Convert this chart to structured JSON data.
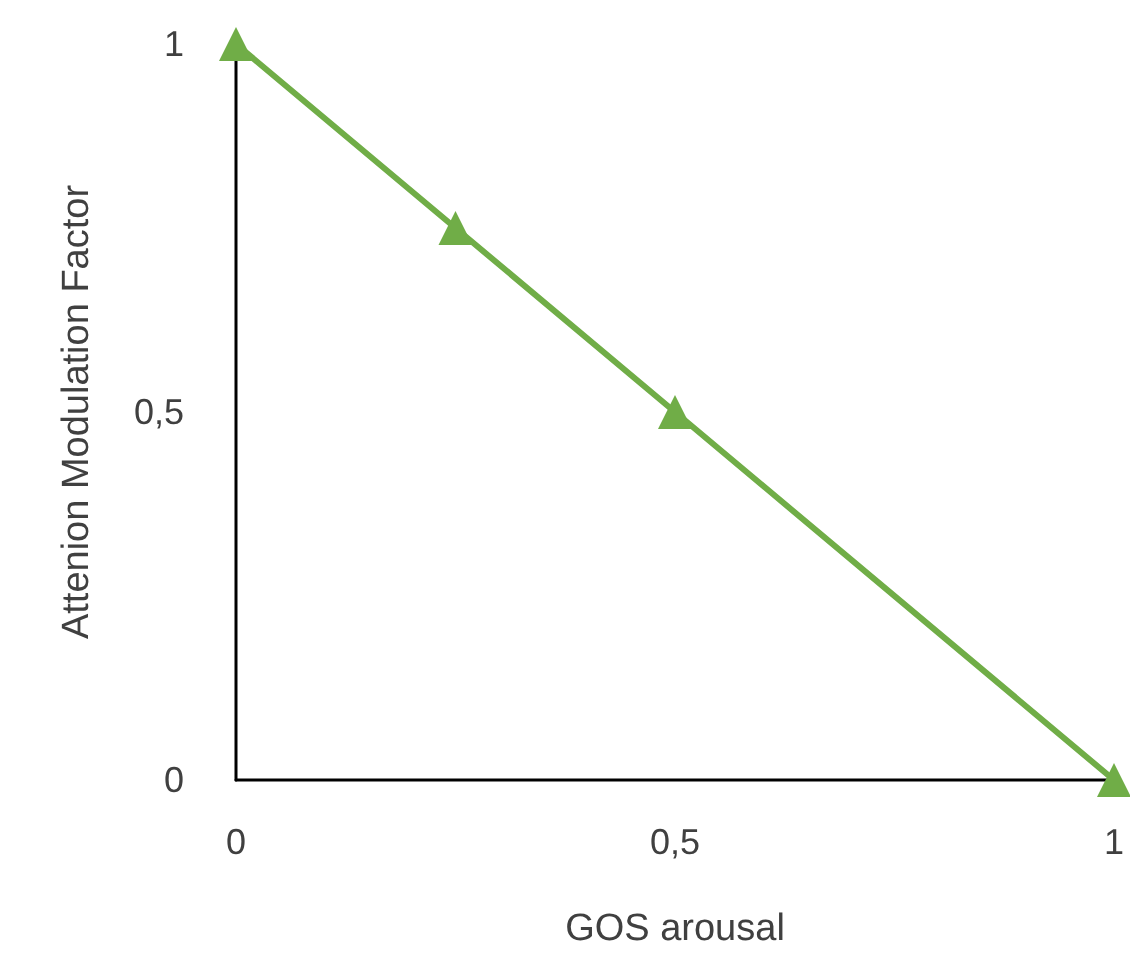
{
  "chart_data": {
    "type": "line",
    "xlabel": "GOS arousal",
    "ylabel": "Attenion Modulation Factor",
    "x": [
      0,
      0.25,
      0.5,
      1
    ],
    "series": [
      {
        "color": "#70ad47",
        "values": [
          1,
          0.75,
          0.5,
          0
        ]
      }
    ],
    "xlim": [
      0,
      1
    ],
    "ylim": [
      0,
      1
    ],
    "xticks": [
      0,
      {
        "value": 0.5,
        "label": "0,5"
      },
      1
    ],
    "yticks": [
      0,
      {
        "value": 0.5,
        "label": "0,5"
      },
      1
    ],
    "grid": false,
    "marker": "triangle",
    "line_style": "solid"
  }
}
